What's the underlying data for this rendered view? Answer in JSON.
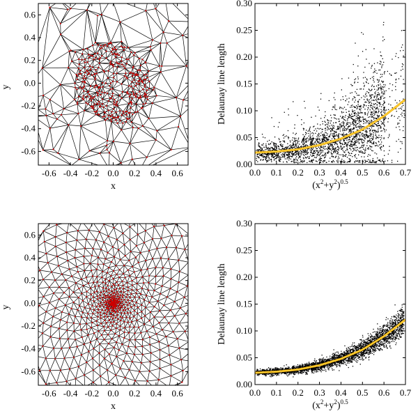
{
  "chart_data": [
    {
      "id": "top-left",
      "type": "triangulation",
      "title": "",
      "xlabel": "x",
      "ylabel": "y",
      "xlim": [
        -0.7,
        0.7
      ],
      "ylim": [
        -0.72,
        0.7
      ],
      "xticks": [
        -0.6,
        -0.4,
        -0.2,
        0.0,
        0.2,
        0.4,
        0.6
      ],
      "yticks": [
        -0.6,
        -0.4,
        -0.2,
        0.0,
        0.2,
        0.4,
        0.6
      ],
      "xtick_labels": [
        "-0.6",
        "-0.4",
        "-0.2",
        "0.0",
        "0.2",
        "0.4",
        "0.6"
      ],
      "ytick_labels": [
        "-0.6",
        "-0.4",
        "-0.2",
        "0.0",
        "0.2",
        "0.4",
        "0.6"
      ],
      "distribution": "clustered random points, dense within r ≈ 0.35",
      "point_color": "#cc0000",
      "edge_color": "#000000"
    },
    {
      "id": "top-right",
      "type": "scatter",
      "title": "",
      "xlabel_base": "(x",
      "xlabel_sup1": "2",
      "xlabel_mid": "+y",
      "xlabel_sup2": "2",
      "xlabel_end": ")",
      "xlabel_sup3": "0.5",
      "ylabel": "Delaunay line length",
      "xlim": [
        0.0,
        0.7
      ],
      "ylim": [
        0.0,
        0.3
      ],
      "xticks": [
        0.0,
        0.1,
        0.2,
        0.3,
        0.4,
        0.5,
        0.6,
        0.7
      ],
      "yticks": [
        0.0,
        0.05,
        0.1,
        0.15,
        0.2,
        0.25,
        0.3
      ],
      "xtick_labels": [
        "0.0",
        "0.1",
        "0.2",
        "0.3",
        "0.4",
        "0.5",
        "0.6",
        "0.7"
      ],
      "ytick_labels": [
        "0.00",
        "0.05",
        "0.10",
        "0.15",
        "0.20",
        "0.25",
        "0.30"
      ],
      "fit_curve": {
        "x": [
          0.0,
          0.1,
          0.2,
          0.3,
          0.4,
          0.5,
          0.6,
          0.7
        ],
        "y": [
          0.022,
          0.024,
          0.028,
          0.036,
          0.048,
          0.065,
          0.09,
          0.121
        ],
        "color": "#ffd03a"
      },
      "point_color": "#000000"
    },
    {
      "id": "bottom-left",
      "type": "triangulation",
      "title": "",
      "xlabel": "x",
      "ylabel": "y",
      "xlim": [
        -0.7,
        0.7
      ],
      "ylim": [
        -0.72,
        0.7
      ],
      "xticks": [
        -0.6,
        -0.4,
        -0.2,
        0.0,
        0.2,
        0.4,
        0.6
      ],
      "yticks": [
        -0.6,
        -0.4,
        -0.2,
        0.0,
        0.2,
        0.4,
        0.6
      ],
      "xtick_labels": [
        "-0.6",
        "-0.4",
        "-0.2",
        "0.0",
        "0.2",
        "0.4",
        "0.6"
      ],
      "ytick_labels": [
        "-0.6",
        "-0.4",
        "-0.2",
        "0.0",
        "0.2",
        "0.4",
        "0.6"
      ],
      "distribution": "regular points with spacing increasing from centre",
      "point_color": "#cc0000",
      "edge_color": "#000000"
    },
    {
      "id": "bottom-right",
      "type": "scatter",
      "title": "",
      "xlabel_base": "(x",
      "xlabel_sup1": "2",
      "xlabel_mid": "+y",
      "xlabel_sup2": "2",
      "xlabel_end": ")",
      "xlabel_sup3": "0.5",
      "ylabel": "Delaunay line length",
      "xlim": [
        0.0,
        0.7
      ],
      "ylim": [
        0.0,
        0.3
      ],
      "xticks": [
        0.0,
        0.1,
        0.2,
        0.3,
        0.4,
        0.5,
        0.6,
        0.7
      ],
      "yticks": [
        0.0,
        0.05,
        0.1,
        0.15,
        0.2,
        0.25,
        0.3
      ],
      "xtick_labels": [
        "0.0",
        "0.1",
        "0.2",
        "0.3",
        "0.4",
        "0.5",
        "0.6",
        "0.7"
      ],
      "ytick_labels": [
        "0.00",
        "0.05",
        "0.10",
        "0.15",
        "0.20",
        "0.25",
        "0.30"
      ],
      "fit_curve": {
        "x": [
          0.0,
          0.1,
          0.2,
          0.3,
          0.4,
          0.5,
          0.6,
          0.7
        ],
        "y": [
          0.022,
          0.024,
          0.028,
          0.036,
          0.048,
          0.065,
          0.09,
          0.121
        ],
        "color": "#ffd03a"
      },
      "point_color": "#000000"
    }
  ]
}
